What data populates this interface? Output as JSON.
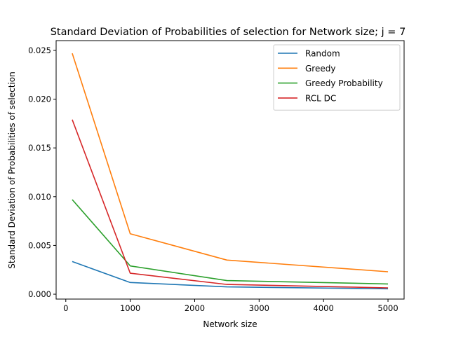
{
  "chart_data": {
    "type": "line",
    "title": "Standard Deviation of Probabilities of selection for Network size; j = 7",
    "xlabel": "Network size",
    "ylabel": "Standard Deviation of Probabilities of selection",
    "x": [
      100,
      1000,
      2500,
      5000
    ],
    "xlim": [
      -150,
      5250
    ],
    "ylim": [
      -0.0005,
      0.026
    ],
    "xticks": [
      0,
      1000,
      2000,
      3000,
      4000,
      5000
    ],
    "xtick_labels": [
      "0",
      "1000",
      "2000",
      "3000",
      "4000",
      "5000"
    ],
    "yticks": [
      0.0,
      0.005,
      0.01,
      0.015,
      0.02,
      0.025
    ],
    "ytick_labels": [
      "0.000",
      "0.005",
      "0.010",
      "0.015",
      "0.020",
      "0.025"
    ],
    "grid": false,
    "legend_position": "top-right",
    "series": [
      {
        "name": "Random",
        "color": "#1f77b4",
        "values": [
          0.00335,
          0.0012,
          0.00075,
          0.00055
        ]
      },
      {
        "name": "Greedy",
        "color": "#ff7f0e",
        "values": [
          0.0247,
          0.0062,
          0.0035,
          0.0023
        ]
      },
      {
        "name": "Greedy Probability",
        "color": "#2ca02c",
        "values": [
          0.0097,
          0.0029,
          0.0014,
          0.00105
        ]
      },
      {
        "name": "RCL DC",
        "color": "#d62728",
        "values": [
          0.0179,
          0.00215,
          0.001,
          0.00065
        ]
      }
    ]
  }
}
